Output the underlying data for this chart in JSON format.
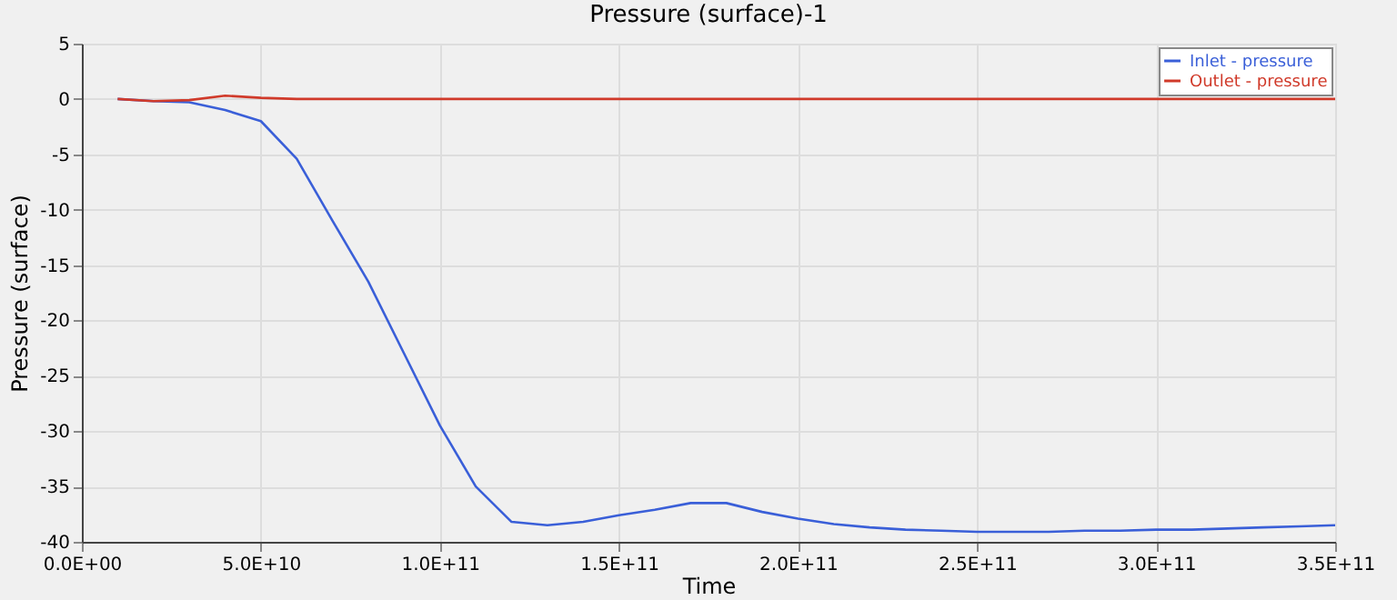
{
  "chart_data": {
    "type": "line",
    "title": "Pressure (surface)-1",
    "xlabel": "Time",
    "ylabel": "Pressure (surface)",
    "x": [
      10000000000.0,
      20000000000.0,
      30000000000.0,
      40000000000.0,
      50000000000.0,
      60000000000.0,
      70000000000.0,
      80000000000.0,
      90000000000.0,
      100000000000.0,
      110000000000.0,
      120000000000.0,
      130000000000.0,
      140000000000.0,
      150000000000.0,
      160000000000.0,
      170000000000.0,
      180000000000.0,
      190000000000.0,
      200000000000.0,
      210000000000.0,
      220000000000.0,
      230000000000.0,
      240000000000.0,
      250000000000.0,
      260000000000.0,
      270000000000.0,
      280000000000.0,
      290000000000.0,
      300000000000.0,
      310000000000.0,
      320000000000.0,
      330000000000.0,
      340000000000.0,
      350000000000.0
    ],
    "series": [
      {
        "name": "Inlet - pressure",
        "color": "#3a5fd8",
        "values": [
          0,
          -0.2,
          -0.3,
          -1.0,
          -2.0,
          -5.4,
          -11,
          -16.5,
          -23,
          -29.5,
          -35,
          -38.2,
          -38.5,
          -38.2,
          -37.6,
          -37.1,
          -36.5,
          -36.5,
          -37.3,
          -37.9,
          -38.4,
          -38.7,
          -38.9,
          -39.0,
          -39.1,
          -39.1,
          -39.1,
          -39.0,
          -39.0,
          -38.9,
          -38.9,
          -38.8,
          -38.7,
          -38.6,
          -38.5
        ]
      },
      {
        "name": "Outlet - pressure",
        "color": "#d03a2a",
        "values": [
          0,
          -0.2,
          -0.1,
          0.3,
          0.1,
          0,
          0,
          0,
          0,
          0,
          0,
          0,
          0,
          0,
          0,
          0,
          0,
          0,
          0,
          0,
          0,
          0,
          0,
          0,
          0,
          0,
          0,
          0,
          0,
          0,
          0,
          0,
          0,
          0,
          0
        ]
      }
    ],
    "xlim": [
      0,
      350000000000.0
    ],
    "xticks": [
      {
        "value": 0,
        "label": "0.0E+00"
      },
      {
        "value": 50000000000.0,
        "label": "5.0E+10"
      },
      {
        "value": 100000000000.0,
        "label": "1.0E+11"
      },
      {
        "value": 150000000000.0,
        "label": "1.5E+11"
      },
      {
        "value": 200000000000.0,
        "label": "2.0E+11"
      },
      {
        "value": 250000000000.0,
        "label": "2.5E+11"
      },
      {
        "value": 300000000000.0,
        "label": "3.0E+11"
      },
      {
        "value": 350000000000.0,
        "label": "3.5E+11"
      }
    ],
    "ylim": [
      -40,
      5
    ],
    "yticks": [
      -40,
      -35,
      -30,
      -25,
      -20,
      -15,
      -10,
      -5,
      0,
      5
    ],
    "grid": true,
    "legend": "top right",
    "marker": "none",
    "line_style": "solid"
  }
}
